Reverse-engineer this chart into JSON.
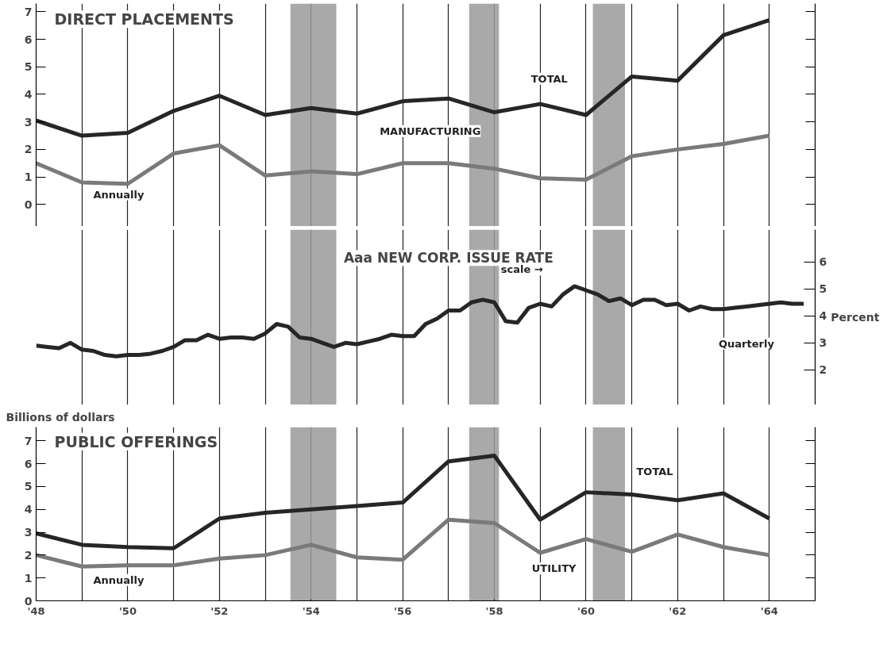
{
  "chart_data": [
    {
      "type": "line",
      "title": "DIRECT PLACEMENTS",
      "x": [
        1948,
        1949,
        1950,
        1951,
        1952,
        1953,
        1954,
        1955,
        1956,
        1957,
        1958,
        1959,
        1960,
        1961,
        1962,
        1963,
        1964
      ],
      "series": [
        {
          "color": "#262626",
          "values": [
            3.05,
            2.5,
            2.6,
            3.4,
            3.95,
            3.25,
            3.5,
            3.3,
            3.75,
            3.85,
            3.35,
            3.65,
            3.25,
            4.65,
            4.5,
            6.15,
            6.7
          ]
        },
        {
          "color": "#7a7a7a",
          "values": [
            1.5,
            0.8,
            0.75,
            1.85,
            2.15,
            1.05,
            1.2,
            1.1,
            1.5,
            1.5,
            1.3,
            0.95,
            0.9,
            1.75,
            2.0,
            2.2,
            2.5
          ]
        }
      ],
      "xlim": [
        1948,
        1965
      ],
      "xticks": [
        1948,
        1949,
        1950,
        1951,
        1952,
        1953,
        1954,
        1955,
        1956,
        1957,
        1958,
        1959,
        1960,
        1961,
        1962,
        1963,
        1964,
        1965
      ],
      "ylim": [
        -0.8,
        7.3
      ],
      "yticks": [
        0,
        1,
        2,
        3,
        4,
        5,
        6,
        7
      ],
      "grid": "x",
      "tick_labels": "y",
      "bands": [
        {
          "axis": "x",
          "from": 1953.55,
          "to": 1954.55,
          "color": "#9a9a9a"
        },
        {
          "axis": "x",
          "from": 1957.45,
          "to": 1958.1,
          "color": "#9a9a9a"
        },
        {
          "axis": "x",
          "from": 1960.15,
          "to": 1960.85,
          "color": "#9a9a9a"
        }
      ],
      "annotations": [
        "TOTAL",
        "MANUFACTURING",
        "Annually"
      ]
    },
    {
      "type": "line",
      "title": "Aaa NEW CORP. ISSUE RATE",
      "x": [
        1948,
        1948.25,
        1948.5,
        1948.75,
        1949,
        1949.25,
        1949.5,
        1949.75,
        1950,
        1950.25,
        1950.5,
        1950.75,
        1951,
        1951.25,
        1951.5,
        1951.75,
        1952,
        1952.25,
        1952.5,
        1952.75,
        1953,
        1953.25,
        1953.5,
        1953.75,
        1954,
        1954.25,
        1954.5,
        1954.75,
        1955,
        1955.25,
        1955.5,
        1955.75,
        1956,
        1956.25,
        1956.5,
        1956.75,
        1957,
        1957.25,
        1957.5,
        1957.75,
        1958,
        1958.25,
        1958.5,
        1958.75,
        1959,
        1959.25,
        1959.5,
        1959.75,
        1960,
        1960.25,
        1960.5,
        1960.75,
        1961,
        1961.25,
        1961.5,
        1961.75,
        1962,
        1962.25,
        1962.5,
        1962.75,
        1963,
        1963.25,
        1963.5,
        1963.75,
        1964,
        1964.25,
        1964.5,
        1964.75
      ],
      "series": [
        {
          "color": "#262626",
          "axis": "y2",
          "values": [
            2.9,
            2.85,
            2.8,
            3.0,
            2.75,
            2.7,
            2.55,
            2.5,
            2.55,
            2.55,
            2.6,
            2.7,
            2.85,
            3.1,
            3.1,
            3.3,
            3.15,
            3.2,
            3.2,
            3.15,
            3.35,
            3.7,
            3.6,
            3.2,
            3.15,
            3.0,
            2.85,
            3.0,
            2.95,
            3.05,
            3.15,
            3.3,
            3.25,
            3.25,
            3.7,
            3.9,
            4.2,
            4.2,
            4.5,
            4.6,
            4.5,
            3.8,
            3.75,
            4.3,
            4.45,
            4.35,
            4.8,
            5.1,
            4.95,
            4.8,
            4.55,
            4.65,
            4.4,
            4.6,
            4.6,
            4.4,
            4.45,
            4.2,
            4.35,
            4.25,
            4.25,
            4.3,
            4.35,
            4.4,
            4.45,
            4.5,
            4.45,
            4.45
          ]
        }
      ],
      "xlim": [
        1948,
        1965
      ],
      "xticks": [
        1948,
        1949,
        1950,
        1951,
        1952,
        1953,
        1954,
        1955,
        1956,
        1957,
        1958,
        1959,
        1960,
        1961,
        1962,
        1963,
        1964,
        1965
      ],
      "y2lim": [
        0.7,
        7.2
      ],
      "y2ticks": [
        2,
        3,
        4,
        5,
        6
      ],
      "y2label": "Percent",
      "grid": "x",
      "tick_labels": "y",
      "bands": [
        {
          "axis": "x",
          "from": 1953.55,
          "to": 1954.55,
          "color": "#9a9a9a"
        },
        {
          "axis": "x",
          "from": 1957.45,
          "to": 1958.1,
          "color": "#9a9a9a"
        },
        {
          "axis": "x",
          "from": 1960.15,
          "to": 1960.85,
          "color": "#9a9a9a"
        }
      ],
      "annotations": [
        "scale →",
        "Quarterly"
      ]
    },
    {
      "type": "line",
      "title": "PUBLIC OFFERINGS",
      "ylabel": "Billions of dollars",
      "x": [
        1948,
        1949,
        1950,
        1951,
        1952,
        1953,
        1954,
        1955,
        1956,
        1957,
        1958,
        1959,
        1960,
        1961,
        1962,
        1963,
        1964
      ],
      "series": [
        {
          "color": "#262626",
          "values": [
            2.95,
            2.45,
            2.35,
            2.3,
            3.6,
            3.85,
            4.0,
            4.15,
            4.3,
            6.1,
            6.35,
            3.55,
            4.75,
            4.65,
            4.4,
            4.7,
            3.6
          ]
        },
        {
          "color": "#7a7a7a",
          "values": [
            2.0,
            1.5,
            1.55,
            1.55,
            1.85,
            2.0,
            2.45,
            1.9,
            1.8,
            3.55,
            3.4,
            2.1,
            2.7,
            2.15,
            2.9,
            2.35,
            2.0
          ]
        }
      ],
      "xlim": [
        1948,
        1965
      ],
      "xticks": [
        {
          "value": 1948,
          "label": "'48"
        },
        {
          "value": 1949,
          "label": null
        },
        {
          "value": 1950,
          "label": "'50"
        },
        {
          "value": 1951,
          "label": null
        },
        {
          "value": 1952,
          "label": "'52"
        },
        {
          "value": 1953,
          "label": null
        },
        {
          "value": 1954,
          "label": "'54"
        },
        {
          "value": 1955,
          "label": null
        },
        {
          "value": 1956,
          "label": "'56"
        },
        {
          "value": 1957,
          "label": null
        },
        {
          "value": 1958,
          "label": "'58"
        },
        {
          "value": 1959,
          "label": null
        },
        {
          "value": 1960,
          "label": "'60"
        },
        {
          "value": 1961,
          "label": null
        },
        {
          "value": 1962,
          "label": "'62"
        },
        {
          "value": 1963,
          "label": null
        },
        {
          "value": 1964,
          "label": "'64"
        },
        {
          "value": 1965,
          "label": null
        }
      ],
      "ylim": [
        0,
        7.6
      ],
      "yticks": [
        0,
        1,
        2,
        3,
        4,
        5,
        6,
        7
      ],
      "grid": "x",
      "bands": [
        {
          "axis": "x",
          "from": 1953.55,
          "to": 1954.55,
          "color": "#9a9a9a"
        },
        {
          "axis": "x",
          "from": 1957.45,
          "to": 1958.1,
          "color": "#9a9a9a"
        },
        {
          "axis": "x",
          "from": 1960.15,
          "to": 1960.85,
          "color": "#9a9a9a"
        }
      ],
      "annotations": [
        "TOTAL",
        "UTILITY",
        "Annually"
      ]
    }
  ]
}
